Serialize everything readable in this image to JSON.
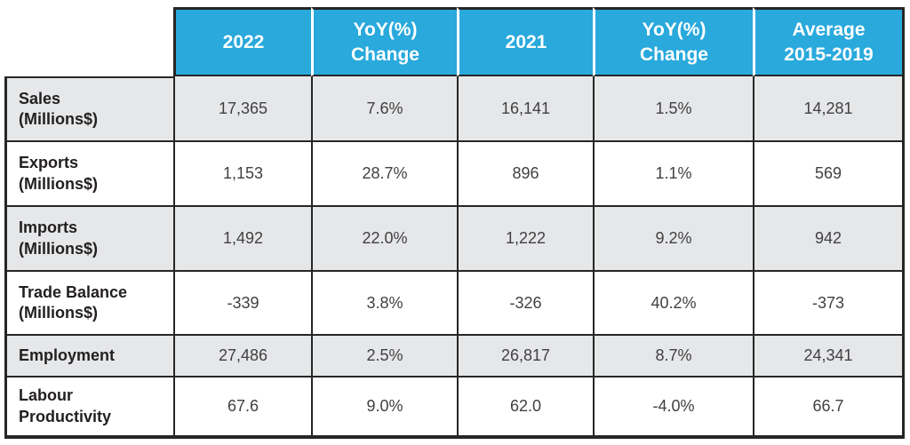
{
  "colors": {
    "header_bg": "#29A9DC",
    "row_alt_bg": "#E6E7E8",
    "row_bg": "#FFFFFF",
    "border": "#262626",
    "header_text": "#FFFFFF",
    "label_text": "#231F20",
    "value_text": "#414042"
  },
  "chart_data": {
    "type": "table",
    "title": "",
    "header": {
      "corner": "",
      "columns": [
        "2022",
        "YoY(%)\nChange",
        "2021",
        "YoY(%)\nChange",
        "Average\n2015-2019"
      ]
    },
    "rows": [
      {
        "label": "Sales\n(Millions$)",
        "values": [
          "17,365",
          "7.6%",
          "16,141",
          "1.5%",
          "14,281"
        ]
      },
      {
        "label": "Exports\n(Millions$)",
        "values": [
          "1,153",
          "28.7%",
          "896",
          "1.1%",
          "569"
        ]
      },
      {
        "label": "Imports\n(Millions$)",
        "values": [
          "1,492",
          "22.0%",
          "1,222",
          "9.2%",
          "942"
        ]
      },
      {
        "label": "Trade Balance\n(Millions$)",
        "values": [
          "-339",
          "3.8%",
          "-326",
          "40.2%",
          "-373"
        ]
      },
      {
        "label": "Employment",
        "values": [
          "27,486",
          "2.5%",
          "26,817",
          "8.7%",
          "24,341"
        ]
      },
      {
        "label": "Labour\nProductivity",
        "values": [
          "67.6",
          "9.0%",
          "62.0",
          "-4.0%",
          "66.7"
        ]
      }
    ]
  }
}
